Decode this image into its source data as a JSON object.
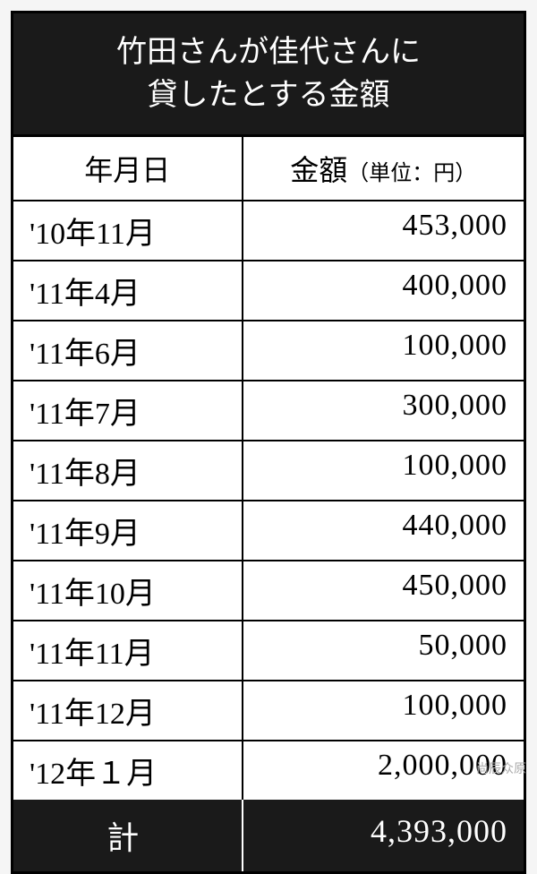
{
  "title": "竹田さんが佳代さんに\n貸したとする金額",
  "columns": {
    "date": "年月日",
    "amount": "金額",
    "unit": "（単位：円）"
  },
  "rows": [
    {
      "date": "'10年11月",
      "amount": "453,000"
    },
    {
      "date": "'11年4月",
      "amount": "400,000"
    },
    {
      "date": "'11年6月",
      "amount": "100,000"
    },
    {
      "date": "'11年7月",
      "amount": "300,000"
    },
    {
      "date": "'11年8月",
      "amount": "100,000"
    },
    {
      "date": "'11年9月",
      "amount": "440,000"
    },
    {
      "date": "'11年10月",
      "amount": "450,000"
    },
    {
      "date": "'11年11月",
      "amount": "50,000"
    },
    {
      "date": "'11年12月",
      "amount": "100,000"
    },
    {
      "date": "'12年１月",
      "amount": "2,000,000"
    }
  ],
  "total": {
    "label": "計",
    "amount": "4,393,000"
  },
  "watermark": "尚辰众原",
  "styling": {
    "header_bg": "#1a1a1a",
    "header_fg": "#ffffff",
    "cell_bg": "#ffffff",
    "border_color": "#000000",
    "title_fontsize": 34,
    "header_fontsize": 32,
    "data_fontsize": 34,
    "total_fontsize": 36,
    "date_col_width_pct": 45,
    "amount_col_width_pct": 55
  }
}
